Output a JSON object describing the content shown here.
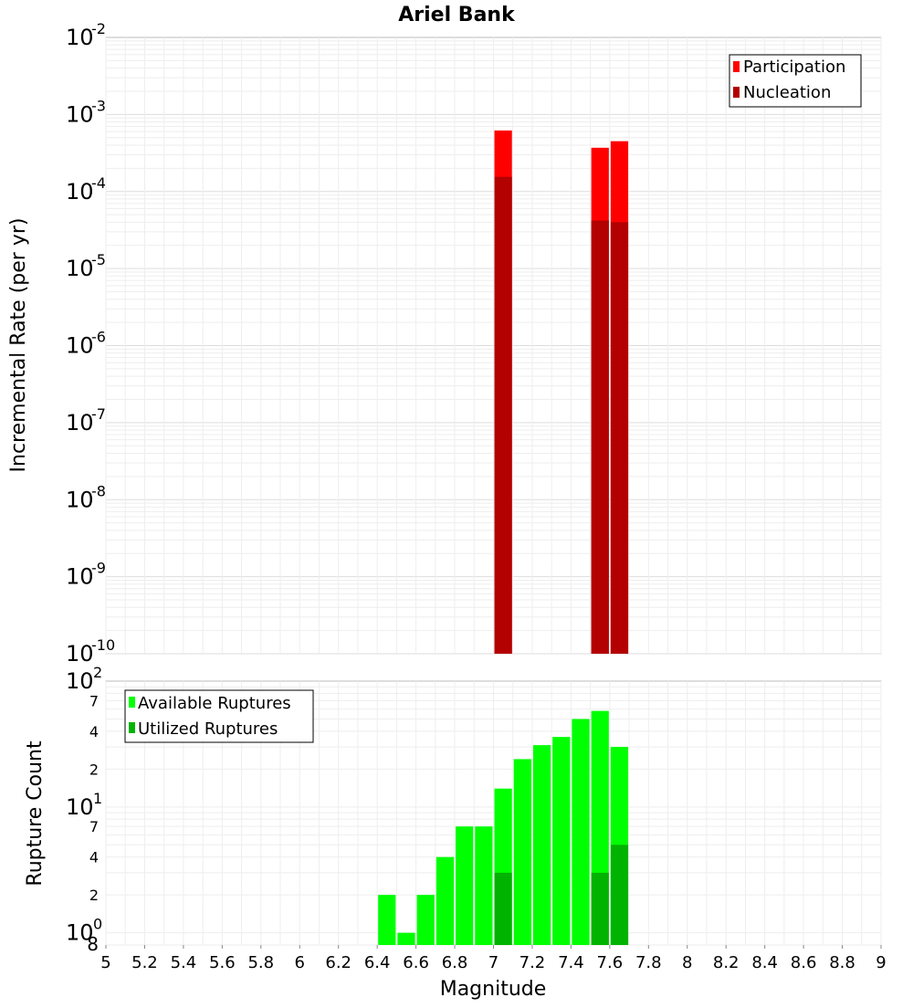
{
  "title": "Ariel Bank",
  "x_axis": {
    "label": "Magnitude",
    "ticks": [
      "5",
      "5.2",
      "5.4",
      "5.6",
      "5.8",
      "6",
      "6.2",
      "6.4",
      "6.6",
      "6.8",
      "7",
      "7.2",
      "7.4",
      "7.6",
      "7.8",
      "8",
      "8.2",
      "8.4",
      "8.6",
      "8.8",
      "9"
    ]
  },
  "top_y_axis": {
    "label": "Incremental Rate (per yr)",
    "ticks": [
      {
        "base": "10",
        "exp": "-10"
      },
      {
        "base": "10",
        "exp": "-9"
      },
      {
        "base": "10",
        "exp": "-8"
      },
      {
        "base": "10",
        "exp": "-7"
      },
      {
        "base": "10",
        "exp": "-6"
      },
      {
        "base": "10",
        "exp": "-5"
      },
      {
        "base": "10",
        "exp": "-4"
      },
      {
        "base": "10",
        "exp": "-3"
      },
      {
        "base": "10",
        "exp": "-2"
      }
    ]
  },
  "bottom_y_axis": {
    "label": "Rupture Count",
    "major_ticks": [
      {
        "base": "10",
        "exp": "0"
      },
      {
        "base": "10",
        "exp": "1"
      },
      {
        "base": "10",
        "exp": "2"
      }
    ],
    "minor_ticks": [
      {
        "label": "8",
        "value": 0.8
      },
      {
        "label": "2",
        "value": 2
      },
      {
        "label": "4",
        "value": 4
      },
      {
        "label": "7",
        "value": 7
      },
      {
        "label": "2",
        "value": 20
      },
      {
        "label": "4",
        "value": 40
      },
      {
        "label": "7",
        "value": 70
      }
    ]
  },
  "legends": {
    "top": [
      "Participation",
      "Nucleation"
    ],
    "bottom": [
      "Available Ruptures",
      "Utilized Ruptures"
    ]
  },
  "chart_data": [
    {
      "type": "bar",
      "scale": "log",
      "xlim": [
        5,
        9
      ],
      "ylim": [
        1e-10,
        0.01
      ],
      "bin_width": 0.1,
      "grid": true,
      "legend_position": "top-right",
      "series": [
        {
          "name": "Participation",
          "color": "#ff0000",
          "x": [
            7.05,
            7.55,
            7.65
          ],
          "values": [
            0.00062,
            0.00037,
            0.00045
          ]
        },
        {
          "name": "Nucleation",
          "color": "#b30000",
          "x": [
            7.05,
            7.55,
            7.65
          ],
          "values": [
            0.000155,
            4.2e-05,
            4e-05
          ]
        }
      ]
    },
    {
      "type": "bar",
      "scale": "log",
      "xlim": [
        5,
        9
      ],
      "ylim": [
        0.8,
        100
      ],
      "bin_width": 0.1,
      "grid": true,
      "legend_position": "top-left",
      "series": [
        {
          "name": "Available Ruptures",
          "color": "#00ff00",
          "x": [
            6.45,
            6.55,
            6.65,
            6.75,
            6.85,
            6.95,
            7.05,
            7.15,
            7.25,
            7.35,
            7.45,
            7.55,
            7.65
          ],
          "values": [
            2,
            1,
            2,
            4,
            7,
            7,
            14,
            24,
            31,
            36,
            50,
            58,
            30
          ]
        },
        {
          "name": "Utilized Ruptures",
          "color": "#00b300",
          "x": [
            7.05,
            7.55,
            7.65
          ],
          "values": [
            3,
            3,
            5
          ]
        }
      ]
    }
  ]
}
